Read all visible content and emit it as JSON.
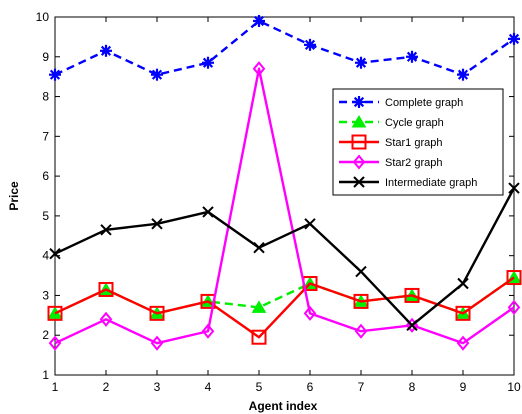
{
  "chart_data": {
    "type": "line",
    "xlabel": "Agent index",
    "ylabel": "Price",
    "xlim": [
      1,
      10
    ],
    "ylim": [
      1,
      10
    ],
    "grid": false,
    "legend_position": "right",
    "x": [
      1,
      2,
      3,
      4,
      5,
      6,
      7,
      8,
      9,
      10
    ],
    "xticks": [
      "1",
      "2",
      "3",
      "4",
      "5",
      "6",
      "7",
      "8",
      "9",
      "10"
    ],
    "yticks": [
      "1",
      "2",
      "3",
      "4",
      "5",
      "6",
      "7",
      "8",
      "9",
      "10"
    ],
    "series": [
      {
        "name": "Complete graph",
        "color": "#0000ff",
        "dash": "dashed",
        "marker": "asterisk",
        "values": [
          8.55,
          9.15,
          8.55,
          8.85,
          9.9,
          9.3,
          8.85,
          9.0,
          8.55,
          9.45
        ]
      },
      {
        "name": "Cycle graph",
        "color": "#00ee00",
        "dash": "dashed",
        "marker": "triangle",
        "values": [
          2.55,
          3.15,
          2.55,
          2.85,
          2.7,
          3.3,
          2.85,
          3.0,
          2.55,
          3.45
        ]
      },
      {
        "name": "Star1 graph",
        "color": "#ff0000",
        "dash": "solid",
        "marker": "square",
        "values": [
          2.55,
          3.15,
          2.55,
          2.85,
          1.95,
          3.3,
          2.85,
          3.0,
          2.55,
          3.45
        ]
      },
      {
        "name": "Star2 graph",
        "color": "#ff00ff",
        "dash": "solid",
        "marker": "diamond",
        "values": [
          1.8,
          2.4,
          1.8,
          2.1,
          8.7,
          2.55,
          2.1,
          2.25,
          1.8,
          2.7
        ]
      },
      {
        "name": "Intermediate graph",
        "color": "#000000",
        "dash": "solid",
        "marker": "x",
        "values": [
          4.05,
          4.65,
          4.8,
          5.1,
          4.2,
          4.8,
          3.6,
          2.25,
          3.3,
          5.7
        ]
      }
    ]
  }
}
